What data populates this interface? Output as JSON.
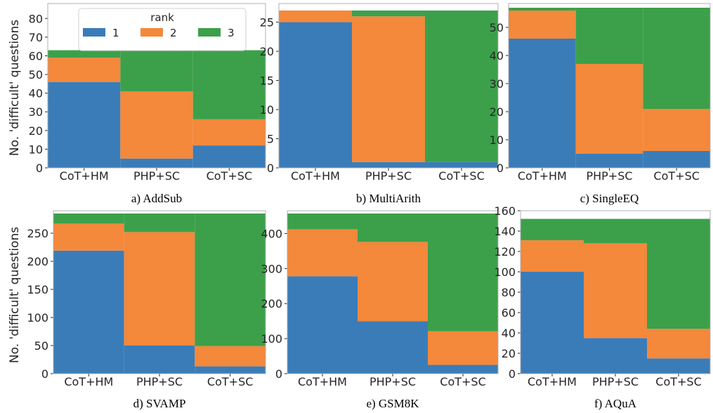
{
  "ylabel": "No. 'difficult' questions",
  "legend": {
    "title": "rank",
    "entries": [
      {
        "label": "1",
        "color": "#3a7cb8"
      },
      {
        "label": "2",
        "color": "#f4883b"
      },
      {
        "label": "3",
        "color": "#3ca04a"
      }
    ],
    "placement": "top-right (panel a)"
  },
  "chart_data": [
    {
      "type": "bar",
      "stacked": true,
      "caption": "a) AddSub",
      "categories": [
        "CoT+HM",
        "PHP+SC",
        "CoT+SC"
      ],
      "series": [
        {
          "name": "1",
          "values": [
            46,
            5,
            12
          ]
        },
        {
          "name": "2",
          "values": [
            13,
            36,
            14
          ]
        },
        {
          "name": "3",
          "values": [
            4,
            22,
            37
          ]
        }
      ],
      "ylim": [
        0,
        88
      ],
      "yticks": [
        0,
        10,
        20,
        30,
        40,
        50,
        60,
        70,
        80
      ],
      "grid": false
    },
    {
      "type": "bar",
      "stacked": true,
      "caption": "b) MultiArith",
      "categories": [
        "CoT+HM",
        "PHP+SC",
        "CoT+SC"
      ],
      "series": [
        {
          "name": "1",
          "values": [
            25,
            1,
            1
          ]
        },
        {
          "name": "2",
          "values": [
            2,
            25,
            0
          ]
        },
        {
          "name": "3",
          "values": [
            0,
            1,
            26
          ]
        }
      ],
      "ylim": [
        0,
        28.2
      ],
      "yticks": [
        0,
        5,
        10,
        15,
        20,
        25
      ],
      "grid": false
    },
    {
      "type": "bar",
      "stacked": true,
      "caption": "c) SingleEQ",
      "categories": [
        "CoT+HM",
        "PHP+SC",
        "CoT+SC"
      ],
      "series": [
        {
          "name": "1",
          "values": [
            46,
            5,
            6
          ]
        },
        {
          "name": "2",
          "values": [
            10,
            32,
            15
          ]
        },
        {
          "name": "3",
          "values": [
            1,
            20,
            36
          ]
        }
      ],
      "ylim": [
        0,
        58.5
      ],
      "yticks": [
        0,
        10,
        20,
        30,
        40,
        50
      ],
      "grid": false
    },
    {
      "type": "bar",
      "stacked": true,
      "caption": "d) SVAMP",
      "categories": [
        "CoT+HM",
        "PHP+SC",
        "CoT+SC"
      ],
      "series": [
        {
          "name": "1",
          "values": [
            219,
            50,
            13
          ]
        },
        {
          "name": "2",
          "values": [
            48,
            202,
            36
          ]
        },
        {
          "name": "3",
          "values": [
            18,
            33,
            236
          ]
        }
      ],
      "ylim": [
        0,
        290
      ],
      "yticks": [
        0,
        50,
        100,
        150,
        200,
        250
      ],
      "grid": false
    },
    {
      "type": "bar",
      "stacked": true,
      "caption": "e) GSM8K",
      "categories": [
        "CoT+HM",
        "PHP+SC",
        "CoT+SC"
      ],
      "series": [
        {
          "name": "1",
          "values": [
            278,
            150,
            25
          ]
        },
        {
          "name": "2",
          "values": [
            134,
            226,
            96
          ]
        },
        {
          "name": "3",
          "values": [
            45,
            81,
            336
          ]
        }
      ],
      "ylim": [
        0,
        465
      ],
      "yticks": [
        0,
        100,
        200,
        300,
        400
      ],
      "grid": false
    },
    {
      "type": "bar",
      "stacked": true,
      "caption": "f) AQuA",
      "categories": [
        "CoT+HM",
        "PHP+SC",
        "CoT+SC"
      ],
      "series": [
        {
          "name": "1",
          "values": [
            100,
            35,
            15
          ]
        },
        {
          "name": "2",
          "values": [
            31,
            93,
            29
          ]
        },
        {
          "name": "3",
          "values": [
            21,
            24,
            108
          ]
        }
      ],
      "ylim": [
        0,
        160
      ],
      "yticks": [
        0,
        20,
        40,
        60,
        80,
        100,
        120,
        140,
        160
      ],
      "grid": false
    }
  ]
}
